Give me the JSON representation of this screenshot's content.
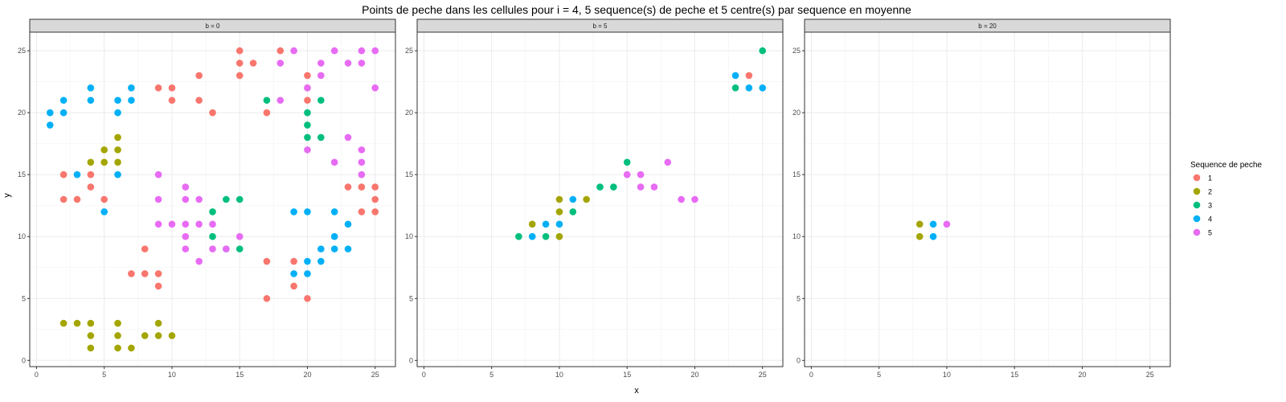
{
  "chart_data": {
    "type": "scatter",
    "title": "Points de peche dans les cellules pour i = 4, 5 sequence(s) de peche et 5 centre(s) par sequence en moyenne",
    "xlabel": "x",
    "ylabel": "y",
    "xlim": [
      -0.5,
      26.5
    ],
    "ylim": [
      -0.5,
      26.5
    ],
    "x_ticks": [
      0,
      5,
      10,
      15,
      20,
      25
    ],
    "y_ticks": [
      0,
      5,
      10,
      15,
      20,
      25
    ],
    "grid": true,
    "legend": {
      "title": "Sequence de peche",
      "placement": "right",
      "entries": [
        {
          "label": "1",
          "color": "#F8766D"
        },
        {
          "label": "2",
          "color": "#A3A500"
        },
        {
          "label": "3",
          "color": "#00BF7D"
        },
        {
          "label": "4",
          "color": "#00B0F6"
        },
        {
          "label": "5",
          "color": "#E76BF3"
        }
      ]
    },
    "panels": [
      {
        "label": "b = 0",
        "series": [
          {
            "name": "1",
            "points": [
              [
                2,
                15
              ],
              [
                2,
                13
              ],
              [
                3,
                13
              ],
              [
                4,
                15
              ],
              [
                4,
                14
              ],
              [
                5,
                13
              ],
              [
                8,
                9
              ],
              [
                7,
                7
              ],
              [
                8,
                7
              ],
              [
                9,
                7
              ],
              [
                9,
                6
              ],
              [
                9,
                22
              ],
              [
                10,
                22
              ],
              [
                10,
                21
              ],
              [
                12,
                23
              ],
              [
                12,
                21
              ],
              [
                13,
                20
              ],
              [
                15,
                25
              ],
              [
                15,
                24
              ],
              [
                15,
                23
              ],
              [
                16,
                24
              ],
              [
                17,
                20
              ],
              [
                17,
                8
              ],
              [
                17,
                5
              ],
              [
                18,
                25
              ],
              [
                19,
                8
              ],
              [
                19,
                6
              ],
              [
                20,
                23
              ],
              [
                20,
                22
              ],
              [
                20,
                21
              ],
              [
                20,
                5
              ],
              [
                23,
                14
              ],
              [
                24,
                14
              ],
              [
                24,
                12
              ],
              [
                25,
                14
              ],
              [
                25,
                13
              ],
              [
                25,
                12
              ]
            ]
          },
          {
            "name": "2",
            "points": [
              [
                2,
                3
              ],
              [
                3,
                3
              ],
              [
                4,
                3
              ],
              [
                4,
                2
              ],
              [
                4,
                1
              ],
              [
                4,
                16
              ],
              [
                5,
                17
              ],
              [
                5,
                16
              ],
              [
                6,
                18
              ],
              [
                6,
                17
              ],
              [
                6,
                16
              ],
              [
                6,
                3
              ],
              [
                6,
                2
              ],
              [
                6,
                1
              ],
              [
                7,
                1
              ],
              [
                8,
                2
              ],
              [
                9,
                3
              ],
              [
                9,
                2
              ],
              [
                10,
                2
              ]
            ]
          },
          {
            "name": "3",
            "points": [
              [
                13,
                12
              ],
              [
                13,
                10
              ],
              [
                14,
                13
              ],
              [
                15,
                13
              ],
              [
                15,
                9
              ],
              [
                17,
                21
              ],
              [
                20,
                20
              ],
              [
                20,
                19
              ],
              [
                20,
                18
              ],
              [
                21,
                21
              ],
              [
                21,
                18
              ]
            ]
          },
          {
            "name": "4",
            "points": [
              [
                1,
                20
              ],
              [
                1,
                19
              ],
              [
                2,
                21
              ],
              [
                2,
                20
              ],
              [
                3,
                15
              ],
              [
                4,
                22
              ],
              [
                4,
                21
              ],
              [
                5,
                12
              ],
              [
                6,
                21
              ],
              [
                6,
                20
              ],
              [
                6,
                15
              ],
              [
                7,
                22
              ],
              [
                7,
                21
              ],
              [
                14,
                9
              ],
              [
                19,
                12
              ],
              [
                19,
                7
              ],
              [
                20,
                12
              ],
              [
                20,
                8
              ],
              [
                20,
                7
              ],
              [
                21,
                8
              ],
              [
                21,
                9
              ],
              [
                22,
                12
              ],
              [
                22,
                10
              ],
              [
                22,
                9
              ],
              [
                23,
                11
              ],
              [
                23,
                9
              ]
            ]
          },
          {
            "name": "5",
            "points": [
              [
                9,
                15
              ],
              [
                9,
                13
              ],
              [
                9,
                11
              ],
              [
                10,
                11
              ],
              [
                11,
                14
              ],
              [
                11,
                13
              ],
              [
                11,
                11
              ],
              [
                11,
                10
              ],
              [
                11,
                9
              ],
              [
                12,
                13
              ],
              [
                12,
                11
              ],
              [
                12,
                8
              ],
              [
                13,
                11
              ],
              [
                13,
                9
              ],
              [
                14,
                9
              ],
              [
                15,
                10
              ],
              [
                18,
                24
              ],
              [
                18,
                21
              ],
              [
                19,
                25
              ],
              [
                20,
                22
              ],
              [
                20,
                17
              ],
              [
                21,
                24
              ],
              [
                21,
                23
              ],
              [
                22,
                25
              ],
              [
                22,
                16
              ],
              [
                23,
                24
              ],
              [
                23,
                18
              ],
              [
                24,
                25
              ],
              [
                24,
                24
              ],
              [
                24,
                17
              ],
              [
                24,
                16
              ],
              [
                24,
                15
              ],
              [
                25,
                25
              ],
              [
                25,
                22
              ]
            ]
          }
        ]
      },
      {
        "label": "b = 5",
        "series": [
          {
            "name": "1",
            "points": [
              [
                24,
                23
              ]
            ]
          },
          {
            "name": "2",
            "points": [
              [
                8,
                11
              ],
              [
                10,
                13
              ],
              [
                10,
                12
              ],
              [
                10,
                10
              ],
              [
                12,
                13
              ]
            ]
          },
          {
            "name": "3",
            "points": [
              [
                7,
                10
              ],
              [
                9,
                10
              ],
              [
                11,
                12
              ],
              [
                13,
                14
              ],
              [
                14,
                14
              ],
              [
                15,
                16
              ],
              [
                23,
                22
              ],
              [
                25,
                25
              ]
            ]
          },
          {
            "name": "4",
            "points": [
              [
                8,
                10
              ],
              [
                9,
                11
              ],
              [
                10,
                11
              ],
              [
                11,
                13
              ],
              [
                23,
                23
              ],
              [
                24,
                22
              ],
              [
                25,
                22
              ]
            ]
          },
          {
            "name": "5",
            "points": [
              [
                15,
                15
              ],
              [
                16,
                15
              ],
              [
                16,
                14
              ],
              [
                17,
                14
              ],
              [
                18,
                16
              ],
              [
                19,
                13
              ],
              [
                20,
                13
              ]
            ]
          }
        ]
      },
      {
        "label": "b = 20",
        "series": [
          {
            "name": "1",
            "points": []
          },
          {
            "name": "2",
            "points": [
              [
                8,
                11
              ],
              [
                8,
                10
              ]
            ]
          },
          {
            "name": "3",
            "points": []
          },
          {
            "name": "4",
            "points": [
              [
                9,
                11
              ],
              [
                9,
                10
              ]
            ]
          },
          {
            "name": "5",
            "points": [
              [
                10,
                11
              ]
            ]
          }
        ]
      }
    ]
  }
}
